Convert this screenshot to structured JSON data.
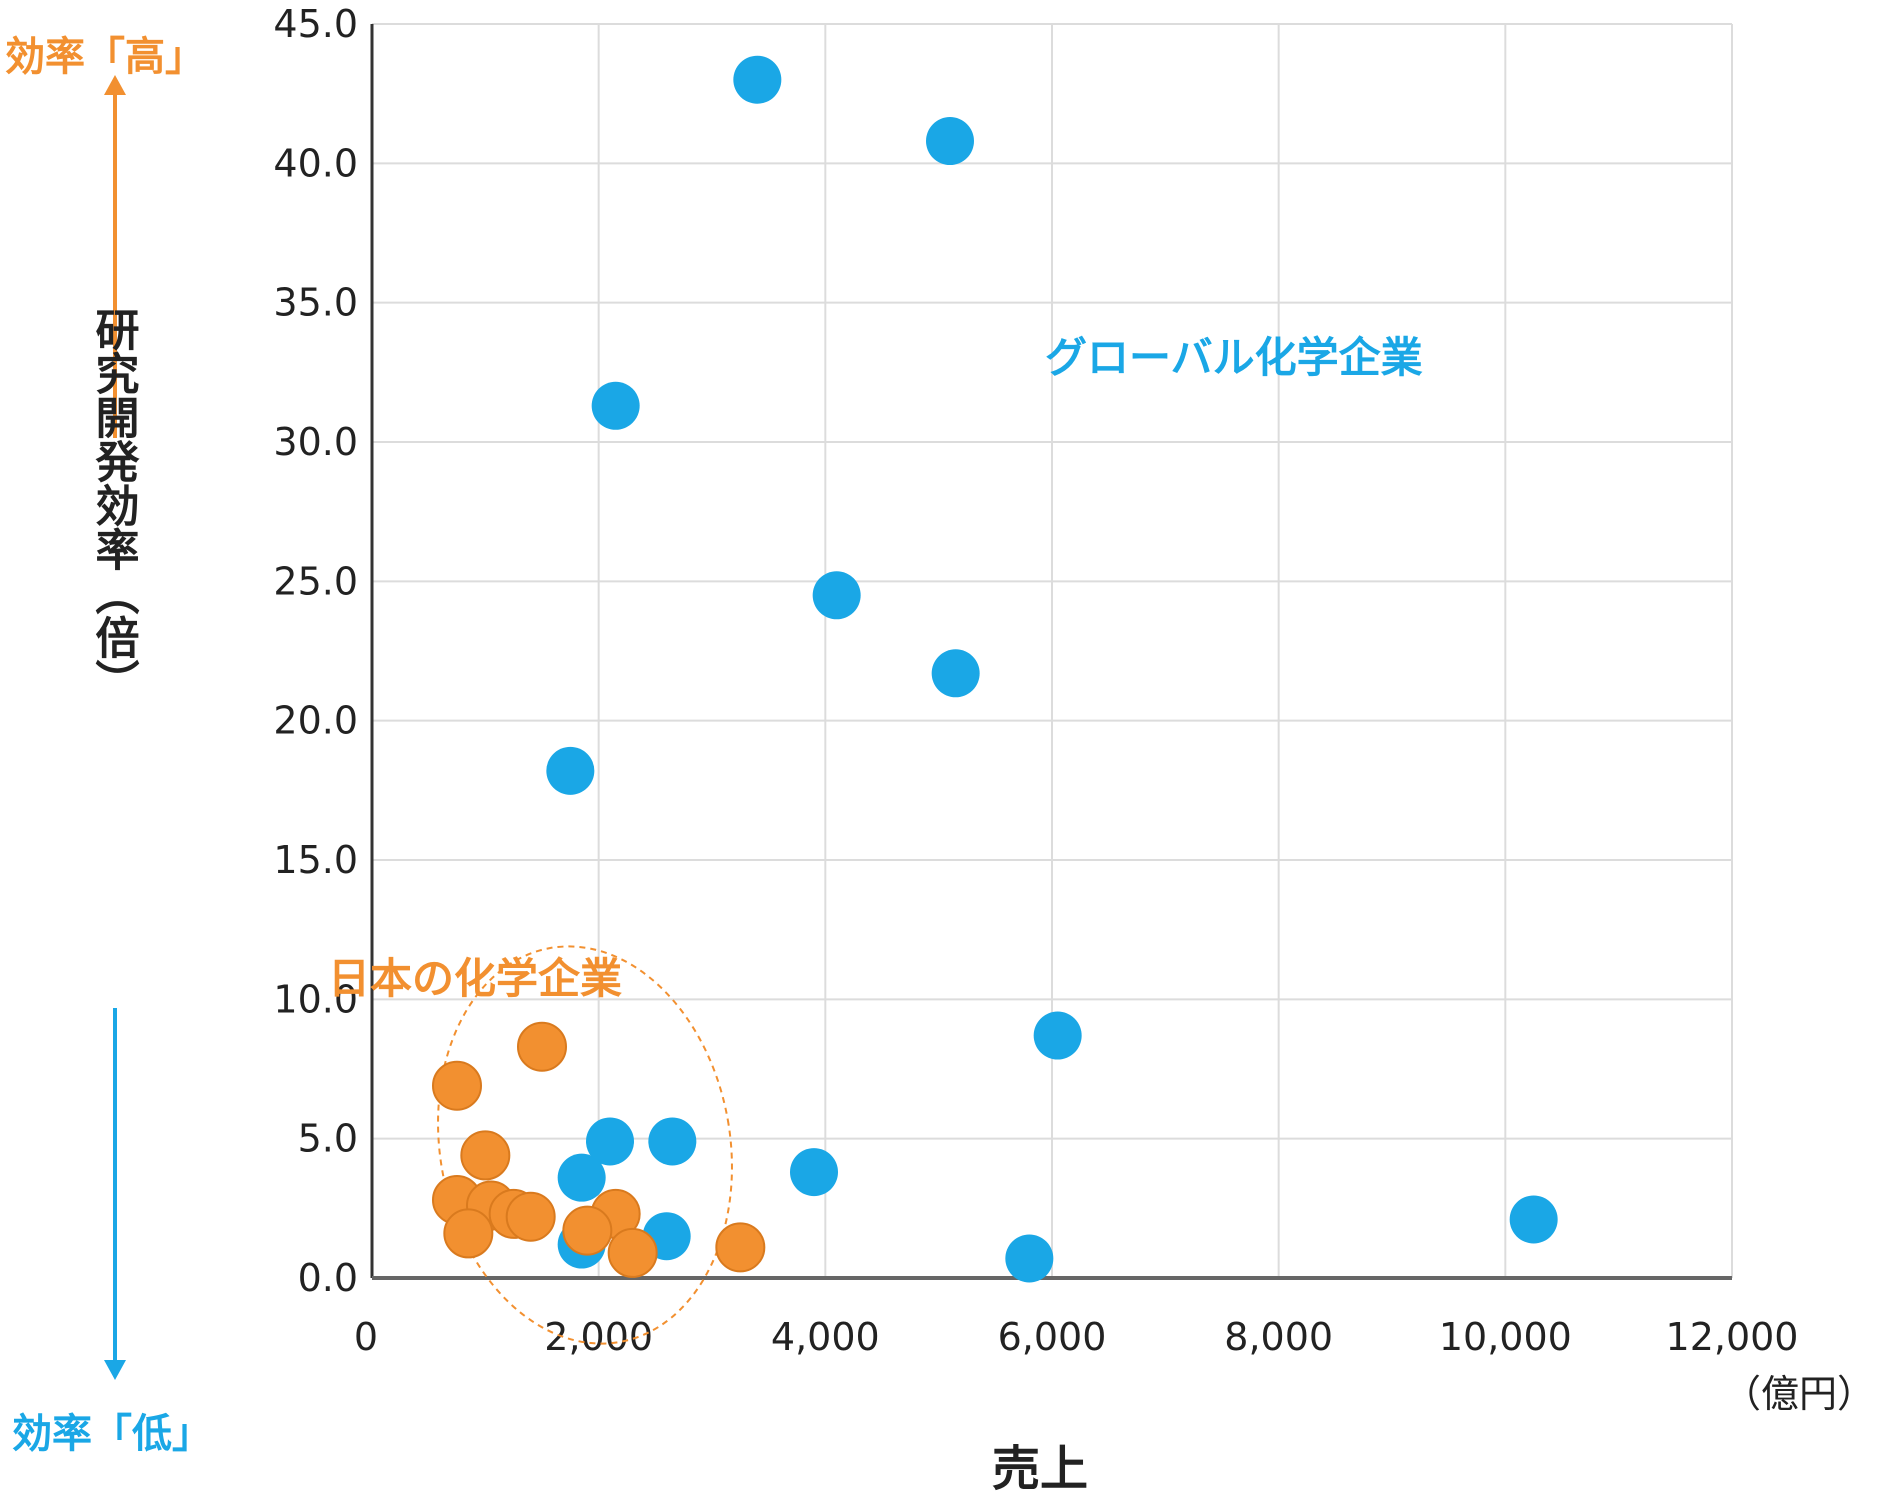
{
  "chart_data": {
    "type": "scatter",
    "title": "",
    "xlabel": "売上",
    "x_unit": "（億円）",
    "ylabel": "研究開発効率（倍）",
    "xlim": [
      0,
      12000
    ],
    "ylim": [
      0,
      45
    ],
    "x_ticks": [
      "0",
      "2,000",
      "4,000",
      "6,000",
      "8,000",
      "10,000",
      "12,000"
    ],
    "y_ticks": [
      "0.0",
      "5.0",
      "10.0",
      "15.0",
      "20.0",
      "25.0",
      "30.0",
      "35.0",
      "40.0",
      "45.0"
    ],
    "grid": true,
    "annotations": {
      "high": "効率「高」",
      "low": "効率「低」"
    },
    "series": [
      {
        "name": "グローバル化学企業",
        "color": "#1aa7e6",
        "points": [
          {
            "x": 3400,
            "y": 43.0
          },
          {
            "x": 5100,
            "y": 40.8
          },
          {
            "x": 2150,
            "y": 31.3
          },
          {
            "x": 4100,
            "y": 24.5
          },
          {
            "x": 5150,
            "y": 21.7
          },
          {
            "x": 1750,
            "y": 18.2
          },
          {
            "x": 6050,
            "y": 8.7
          },
          {
            "x": 2100,
            "y": 4.9
          },
          {
            "x": 2650,
            "y": 4.9
          },
          {
            "x": 1850,
            "y": 3.6
          },
          {
            "x": 3900,
            "y": 3.8
          },
          {
            "x": 2600,
            "y": 1.5
          },
          {
            "x": 1850,
            "y": 1.2
          },
          {
            "x": 5800,
            "y": 0.7
          },
          {
            "x": 10250,
            "y": 2.1
          }
        ]
      },
      {
        "name": "日本の化学企業",
        "color": "#f29030",
        "points": [
          {
            "x": 1500,
            "y": 8.3
          },
          {
            "x": 750,
            "y": 6.9
          },
          {
            "x": 1000,
            "y": 4.4
          },
          {
            "x": 750,
            "y": 2.8
          },
          {
            "x": 1050,
            "y": 2.6
          },
          {
            "x": 1250,
            "y": 2.3
          },
          {
            "x": 1400,
            "y": 2.2
          },
          {
            "x": 850,
            "y": 1.6
          },
          {
            "x": 2150,
            "y": 2.3
          },
          {
            "x": 1900,
            "y": 1.7
          },
          {
            "x": 2300,
            "y": 0.9
          },
          {
            "x": 3250,
            "y": 1.1
          }
        ]
      }
    ]
  }
}
